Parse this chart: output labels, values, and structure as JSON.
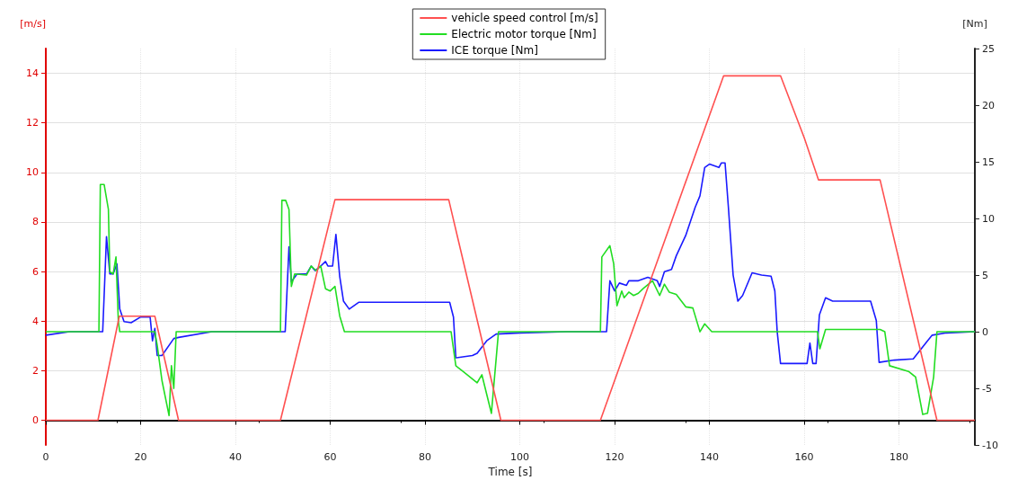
{
  "chart_data": {
    "type": "line",
    "xlabel": "Time [s]",
    "ylabel": "[m/s]",
    "y2label": "[Nm]",
    "xlim": [
      0,
      196
    ],
    "xticks": [
      0,
      20,
      40,
      60,
      80,
      100,
      120,
      140,
      160,
      180
    ],
    "ylim": [
      -1,
      15
    ],
    "yticks": [
      0,
      2,
      4,
      6,
      8,
      10,
      12,
      14
    ],
    "y2lim": [
      -10,
      25
    ],
    "y2ticks": [
      -10,
      -5,
      0,
      5,
      10,
      15,
      20,
      25
    ],
    "grid": true,
    "legend": "top",
    "marker": "none",
    "line_style": "solid",
    "series": [
      {
        "name": "vehicle speed control [m/s]",
        "color": "#ff5050",
        "x": [
          0,
          11,
          15.5,
          23,
          28,
          49.5,
          61,
          85,
          96,
          117,
          143,
          155,
          160,
          163,
          176,
          188,
          196
        ],
        "values": [
          0,
          0,
          4.2,
          4.2,
          0,
          0,
          8.9,
          8.9,
          0,
          0,
          13.9,
          13.9,
          11.4,
          9.7,
          9.7,
          0,
          0
        ]
      },
      {
        "name": "Electric motor torque [Nm]",
        "color": "#22dd22",
        "axis": "y2",
        "x": [
          0,
          11.2,
          11.5,
          12.3,
          13.2,
          13.5,
          14.2,
          14.8,
          15.3,
          15.6,
          23,
          23.5,
          24.5,
          26,
          26.5,
          27,
          27.5,
          49.5,
          49.8,
          50.6,
          51.3,
          51.8,
          52.5,
          55,
          56,
          57,
          58,
          59,
          60,
          61,
          62,
          63,
          85.5,
          86.5,
          88,
          91,
          92,
          94,
          95.5,
          117,
          117.3,
          119,
          119.8,
          120.5,
          121.5,
          122,
          123,
          124,
          125,
          126,
          128,
          129.5,
          130.5,
          131.5,
          133,
          135,
          136.5,
          138,
          139,
          140.5,
          162.8,
          163.3,
          164.5,
          176,
          177,
          178,
          182,
          183.5,
          185,
          186,
          187.3,
          188,
          196
        ],
        "values": [
          0,
          0,
          13,
          13,
          10.8,
          5.3,
          5.1,
          6.6,
          0.9,
          0,
          0,
          -1.2,
          -4.3,
          -7.4,
          -3,
          -5,
          0,
          0,
          11.6,
          11.6,
          10.8,
          4,
          5.1,
          5,
          5.8,
          5.4,
          5.8,
          3.8,
          3.6,
          4,
          1.4,
          0,
          0,
          -3,
          -3.5,
          -4.5,
          -3.8,
          -7.2,
          0,
          0,
          6.6,
          7.6,
          6,
          2.3,
          3.6,
          3,
          3.5,
          3.2,
          3.4,
          3.8,
          4.5,
          3.2,
          4.2,
          3.5,
          3.3,
          2.2,
          2.1,
          0,
          0.7,
          0,
          0,
          -1.5,
          0.2,
          0.2,
          0,
          -3,
          -3.5,
          -4,
          -7.3,
          -7.2,
          -4,
          0,
          0
        ]
      },
      {
        "name": "ICE torque [Nm]",
        "color": "#1a1aff",
        "axis": "y2",
        "x": [
          0,
          5,
          12,
          12.8,
          13.5,
          14.2,
          15,
          15.6,
          16.5,
          18,
          20,
          22,
          22.5,
          23,
          23.5,
          24.5,
          27,
          28,
          35,
          50.5,
          51.3,
          51.8,
          53,
          55,
          56,
          56.8,
          58,
          59,
          59.5,
          60.5,
          61.2,
          62,
          62.8,
          64,
          66,
          70,
          85.2,
          86,
          86.5,
          90,
          91,
          93,
          95,
          100,
          110,
          118.3,
          119,
          120,
          121,
          122.5,
          123,
          125,
          127,
          129,
          129.5,
          130.5,
          132,
          133,
          135,
          137,
          138,
          139,
          140,
          142,
          142.5,
          143.3,
          144,
          145,
          146,
          147,
          149,
          151,
          153,
          153.8,
          154.3,
          155,
          160.6,
          161.2,
          161.8,
          162.5,
          163.2,
          164.5,
          166,
          174,
          175.2,
          175.8,
          179,
          183,
          186,
          187,
          190,
          196
        ],
        "values": [
          -0.3,
          0,
          0,
          8.4,
          5.1,
          5.1,
          6,
          2,
          0.9,
          0.8,
          1.3,
          1.3,
          -0.8,
          0.3,
          -2.1,
          -2.1,
          -0.6,
          -0.5,
          0,
          0,
          7.5,
          4.4,
          5.1,
          5.1,
          5.8,
          5.4,
          5.8,
          6.2,
          5.8,
          5.8,
          8.6,
          4.9,
          2.7,
          2,
          2.6,
          2.6,
          2.6,
          1.3,
          -2.3,
          -2.1,
          -1.9,
          -0.8,
          -0.2,
          -0.1,
          0,
          0,
          4.5,
          3.6,
          4.3,
          4.1,
          4.5,
          4.5,
          4.8,
          4.5,
          4,
          5.3,
          5.5,
          6.7,
          8.5,
          11,
          12,
          14.5,
          14.8,
          14.5,
          14.9,
          14.9,
          11,
          5,
          2.7,
          3.2,
          5.2,
          5,
          4.9,
          3.6,
          0,
          -2.8,
          -2.8,
          -1,
          -2.8,
          -2.8,
          1.5,
          3,
          2.7,
          2.7,
          1,
          -2.7,
          -2.5,
          -2.4,
          -0.8,
          -0.3,
          -0.1,
          0
        ]
      }
    ]
  }
}
